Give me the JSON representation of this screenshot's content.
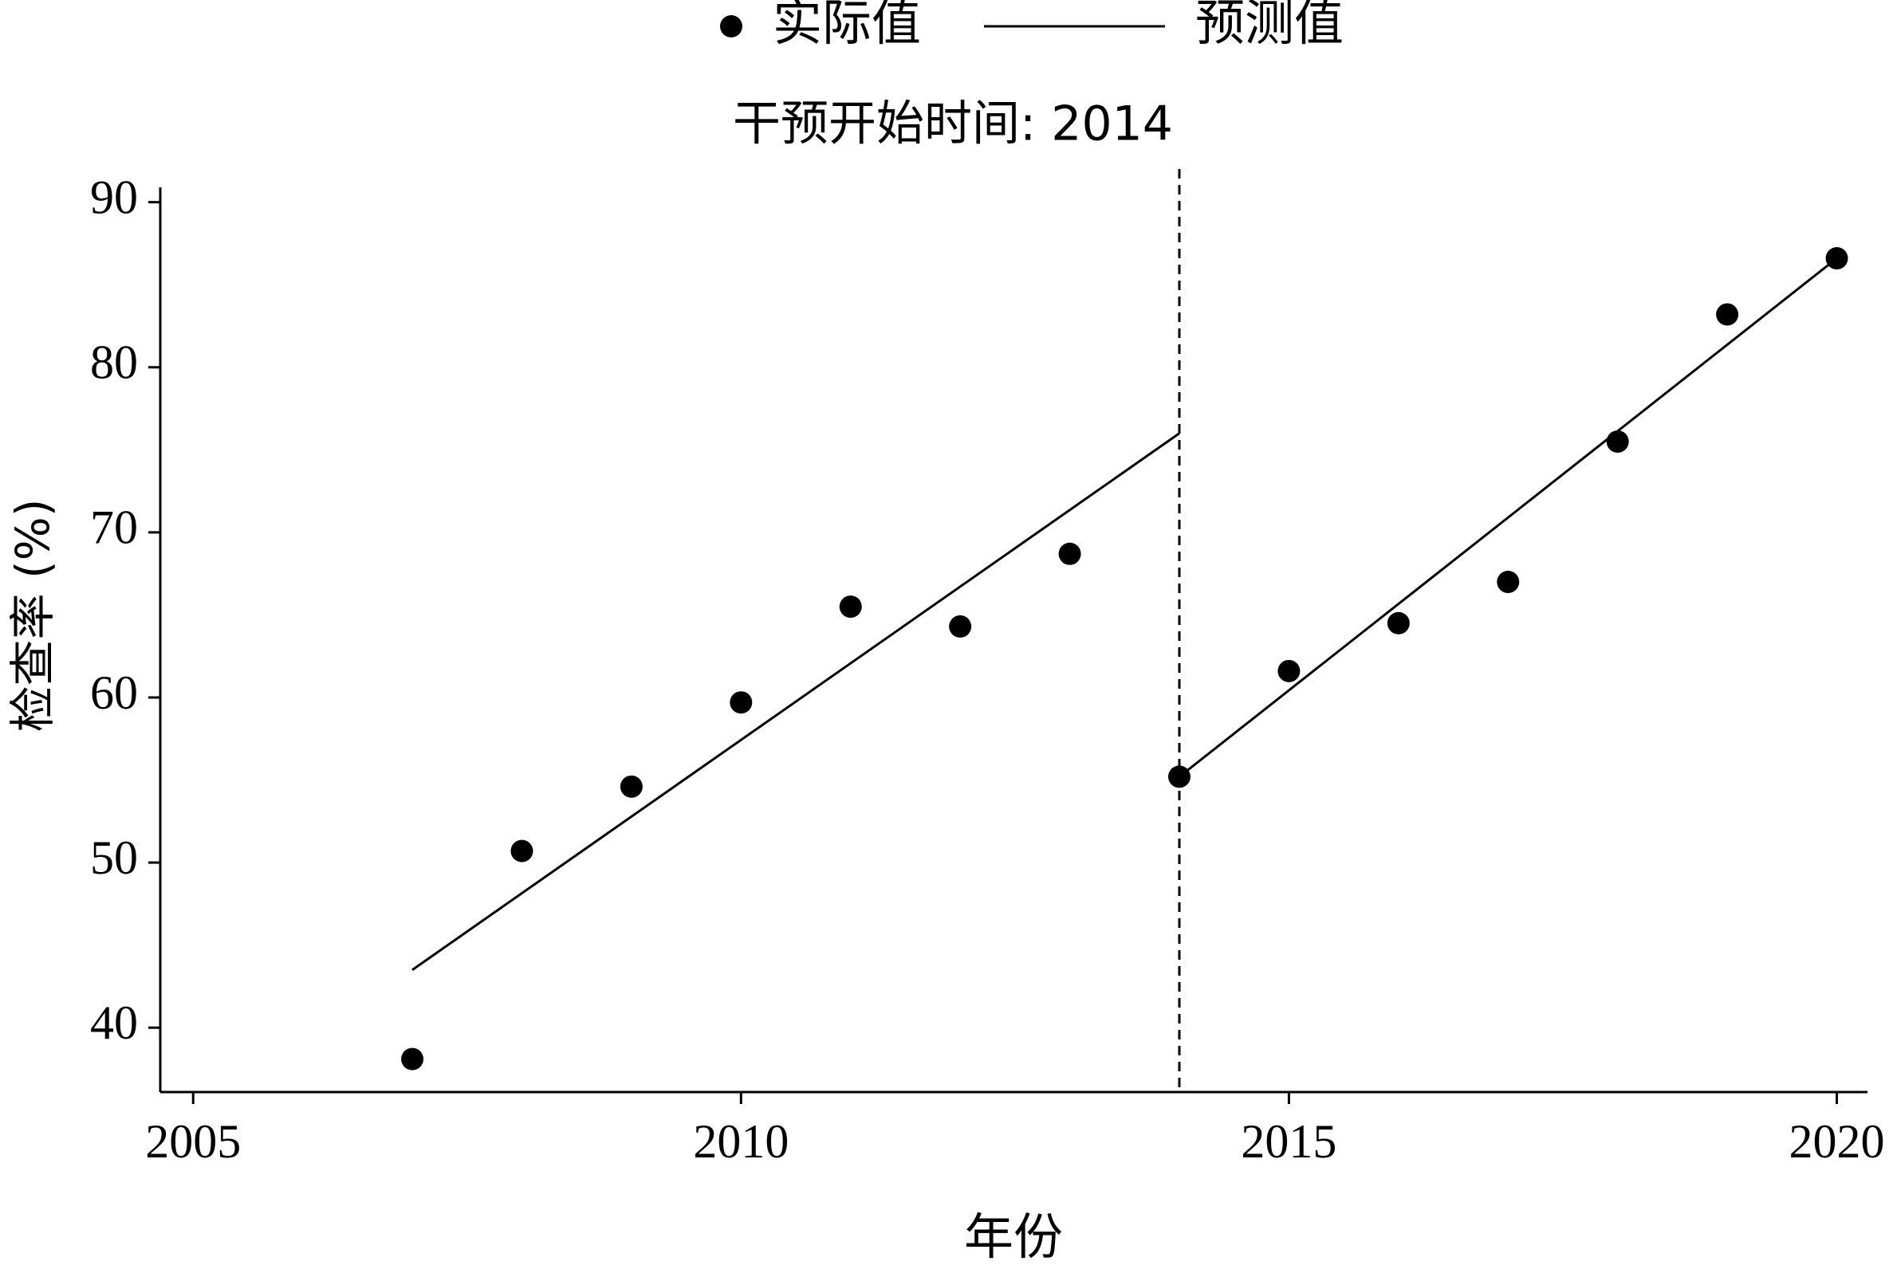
{
  "chart_data": {
    "type": "scatter_line",
    "annotation": "干预开始时间: 2014",
    "intervention_x": 2014,
    "x_label": "年份",
    "y_label": "检查率 (%)",
    "series": [
      {
        "name": "实际值",
        "type": "scatter",
        "color": "#000000",
        "x": [
          2007,
          2008,
          2009,
          2010,
          2011,
          2012,
          2013,
          2014,
          2015,
          2016,
          2017,
          2018,
          2019,
          2020
        ],
        "values": [
          38.1,
          50.7,
          54.6,
          59.7,
          65.5,
          64.3,
          68.7,
          55.2,
          61.6,
          64.5,
          67.0,
          75.5,
          83.2,
          86.6
        ]
      },
      {
        "name": "预测值",
        "type": "line",
        "color": "#000000",
        "x": [
          2007,
          2014,
          2014,
          2014,
          2020
        ],
        "values": [
          43.5,
          76.0,
          null,
          55.2,
          86.6
        ]
      }
    ],
    "xlim": [
      2004.7,
      2020.28
    ],
    "ylim": [
      36.1,
      90.9
    ],
    "xticks": [
      2005,
      2010,
      2015,
      2020
    ],
    "yticks": [
      40,
      50,
      60,
      70,
      80,
      90
    ],
    "grid": false,
    "legend": "top"
  }
}
